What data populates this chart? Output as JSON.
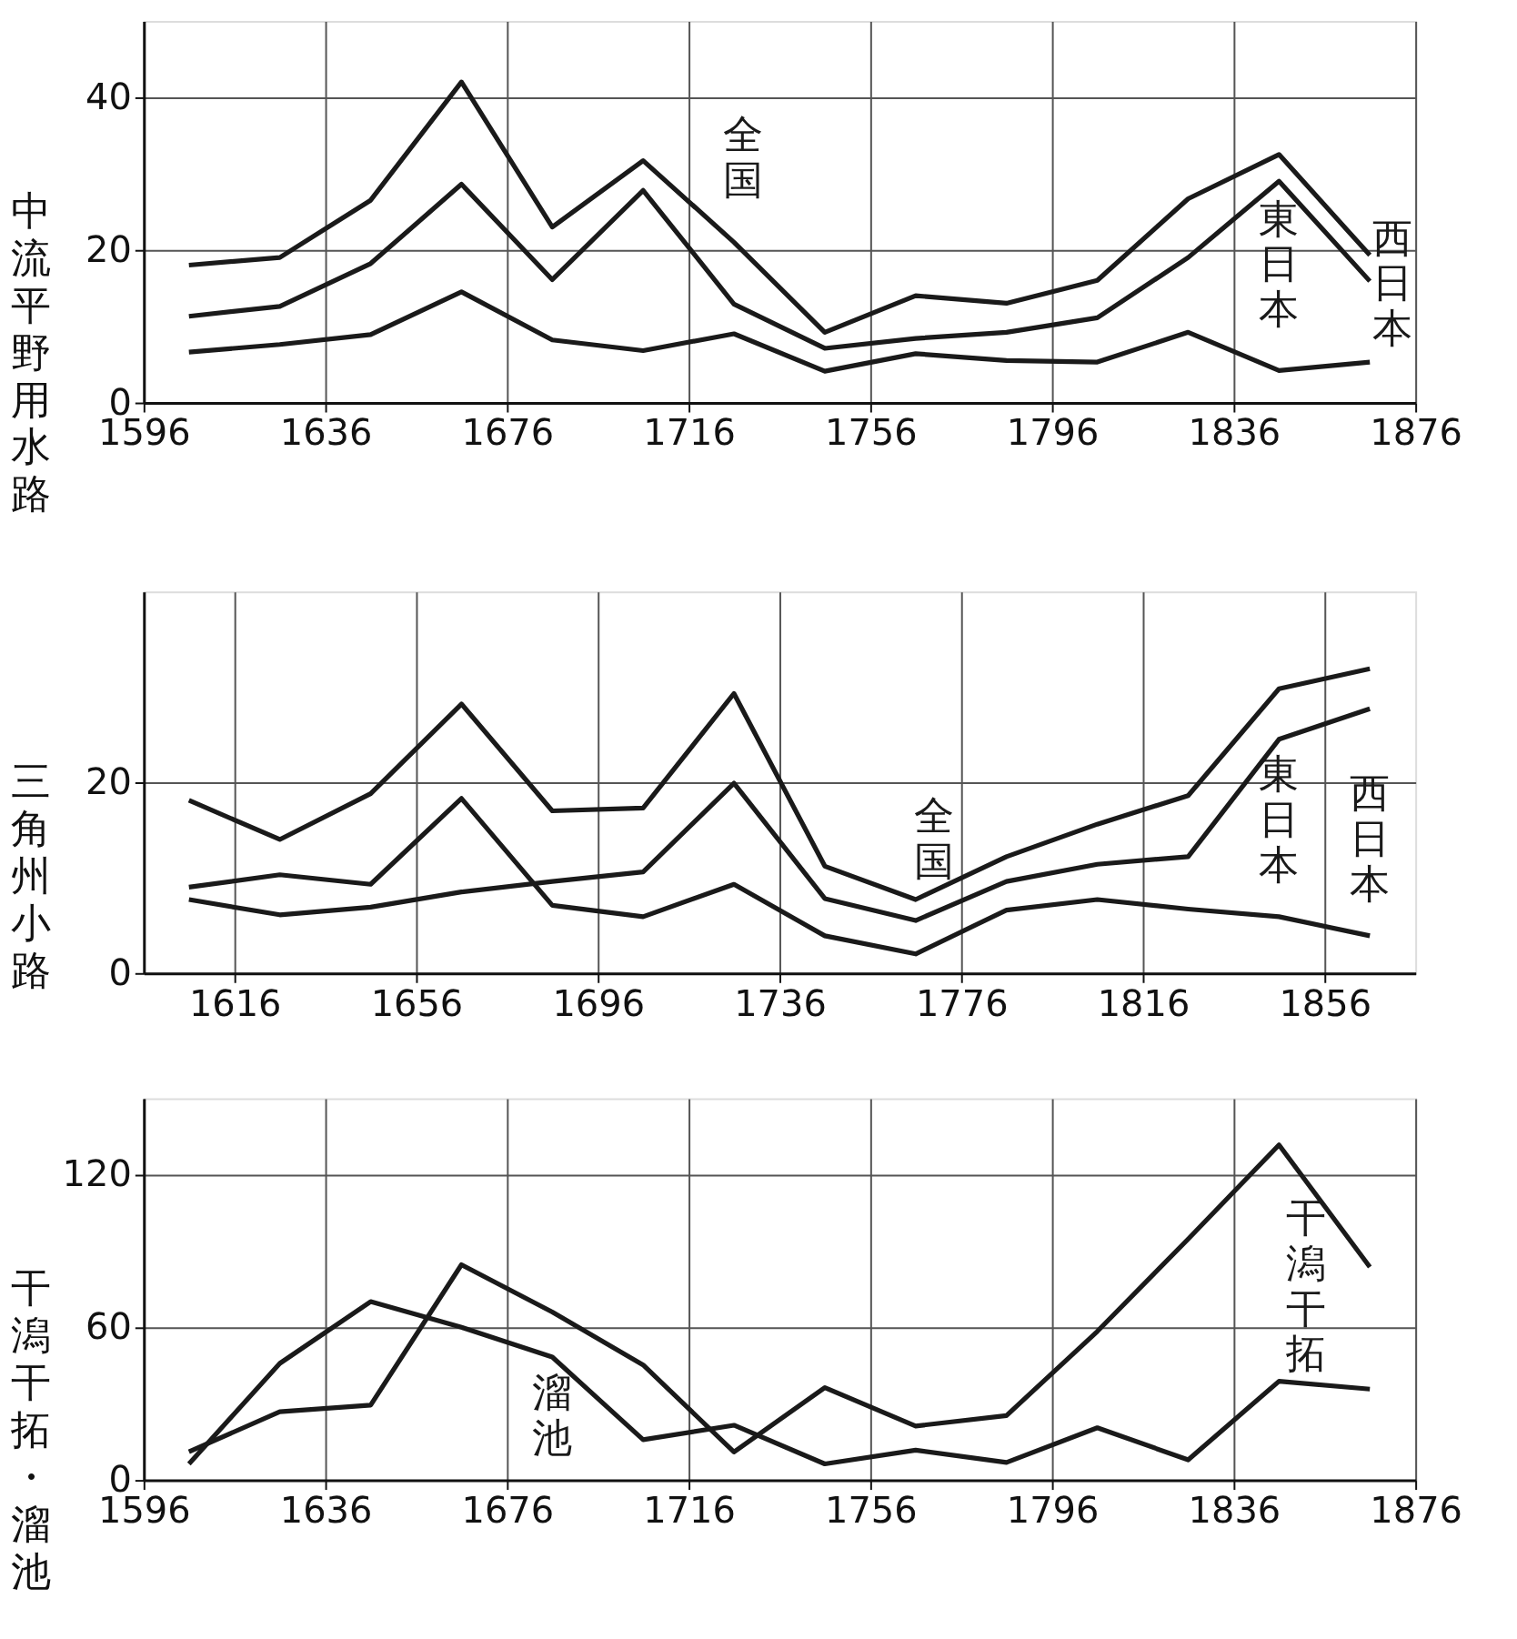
{
  "chart_data": [
    {
      "type": "line",
      "ylabel": "中流平野用水路",
      "x": [
        1606,
        1626,
        1646,
        1666,
        1686,
        1706,
        1726,
        1746,
        1766,
        1786,
        1806,
        1826,
        1846,
        1866
      ],
      "xlim": [
        1596,
        1876
      ],
      "xticks": [
        1596,
        1636,
        1676,
        1716,
        1756,
        1796,
        1836,
        1876
      ],
      "ylim": [
        0,
        50
      ],
      "yticks": [
        0,
        20,
        40
      ],
      "grid": true,
      "marker": "none",
      "line_style": "solid",
      "series": [
        {
          "name": "全国",
          "color": "#1a1a1a",
          "values": [
            18,
            19,
            26.5,
            42,
            23,
            31.7,
            21,
            9.2,
            14,
            13,
            16,
            26.7,
            32.5,
            19.3
          ]
        },
        {
          "name": "東日本",
          "color": "#1a1a1a",
          "values": [
            11.3,
            12.6,
            18.2,
            28.6,
            16.1,
            27.8,
            12.9,
            7.1,
            8.4,
            9.2,
            11.1,
            19,
            29,
            15.9
          ]
        },
        {
          "name": "西日本",
          "color": "#1a1a1a",
          "values": [
            6.6,
            7.6,
            8.9,
            14.5,
            8.2,
            6.8,
            9,
            4.1,
            6.4,
            5.5,
            5.3,
            9.2,
            4.2,
            5.3
          ]
        }
      ]
    },
    {
      "type": "line",
      "ylabel": "三角州小路",
      "x": [
        1606,
        1626,
        1646,
        1666,
        1686,
        1706,
        1726,
        1746,
        1766,
        1786,
        1806,
        1826,
        1846,
        1866
      ],
      "xlim": [
        1596,
        1876
      ],
      "xticks": [
        1616,
        1656,
        1696,
        1736,
        1776,
        1816,
        1856
      ],
      "ylim": [
        0,
        40
      ],
      "yticks": [
        0,
        20
      ],
      "grid": true,
      "marker": "none",
      "line_style": "solid",
      "series": [
        {
          "name": "全国",
          "color": "#1a1a1a",
          "values": [
            18.1,
            14,
            18.8,
            28.2,
            17,
            17.3,
            29.3,
            11.2,
            7.7,
            12.2,
            15.6,
            18.6,
            29.8,
            31.9
          ]
        },
        {
          "name": "東日本",
          "color": "#1a1a1a",
          "values": [
            7.7,
            6.1,
            6.9,
            8.5,
            9.6,
            10.6,
            19.9,
            7.8,
            5.5,
            9.6,
            11.4,
            12.2,
            24.5,
            27.7
          ]
        },
        {
          "name": "西日本",
          "color": "#1a1a1a",
          "values": [
            9,
            10.3,
            9.3,
            18.3,
            7.1,
            5.9,
            9.3,
            3.9,
            2,
            6.6,
            7.7,
            6.7,
            5.9,
            3.9
          ]
        }
      ]
    },
    {
      "type": "line",
      "ylabel": "干潟干拓・溜池",
      "x": [
        1606,
        1626,
        1646,
        1666,
        1686,
        1706,
        1726,
        1746,
        1766,
        1786,
        1806,
        1826,
        1846,
        1866
      ],
      "xlim": [
        1596,
        1876
      ],
      "xticks": [
        1596,
        1636,
        1676,
        1716,
        1756,
        1796,
        1836,
        1876
      ],
      "ylim": [
        0,
        150
      ],
      "yticks": [
        0,
        60,
        120
      ],
      "grid": true,
      "marker": "none",
      "line_style": "solid",
      "series": [
        {
          "name": "干潟干拓",
          "color": "#1a1a1a",
          "values": [
            11.1,
            26.8,
            29.4,
            84.6,
            66,
            45.2,
            11,
            36.3,
            21.2,
            25.3,
            58.4,
            94.7,
            131.7,
            83.7
          ]
        },
        {
          "name": "溜池",
          "color": "#1a1a1a",
          "values": [
            6.3,
            45.8,
            70.1,
            60,
            48.3,
            15.8,
            21.5,
            6.3,
            11.7,
            6.9,
            20.5,
            7.9,
            38.8,
            35.7
          ]
        }
      ]
    }
  ]
}
